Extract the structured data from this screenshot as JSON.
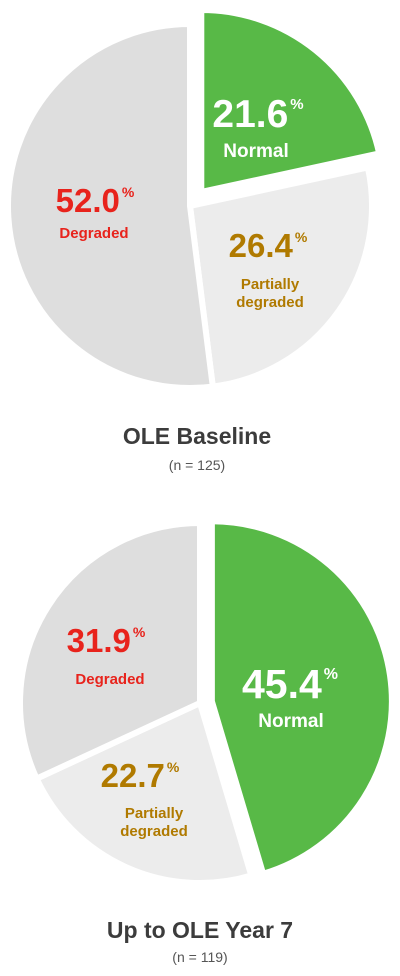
{
  "colors": {
    "normal": "#58b947",
    "partially_degraded_slice": "#ececec",
    "degraded_slice": "#dedede",
    "normal_text": "#ffffff",
    "partially_degraded_text": "#b07a00",
    "degraded_text": "#e8231c",
    "caption": "#3c3c3c"
  },
  "chart_data": [
    {
      "type": "pie",
      "title": "OLE Baseline",
      "subtitle": "(n = 125)",
      "slices": [
        {
          "label": "Normal",
          "value": 21.6,
          "value_text": "21.6",
          "unit": "%",
          "color_key": "normal",
          "exploded": true
        },
        {
          "label": "Partially degraded",
          "value": 26.4,
          "value_text": "26.4",
          "unit": "%",
          "color_key": "partially_degraded"
        },
        {
          "label": "Degraded",
          "value": 52.0,
          "value_text": "52.0",
          "unit": "%",
          "color_key": "degraded"
        }
      ]
    },
    {
      "type": "pie",
      "title": "Up to OLE Year 7",
      "subtitle": "(n = 119)",
      "slices": [
        {
          "label": "Normal",
          "value": 45.4,
          "value_text": "45.4",
          "unit": "%",
          "color_key": "normal",
          "exploded": true
        },
        {
          "label": "Partially degraded",
          "value": 22.7,
          "value_text": "22.7",
          "unit": "%",
          "color_key": "partially_degraded"
        },
        {
          "label": "Degraded",
          "value": 31.9,
          "value_text": "31.9",
          "unit": "%",
          "color_key": "degraded"
        }
      ]
    }
  ]
}
